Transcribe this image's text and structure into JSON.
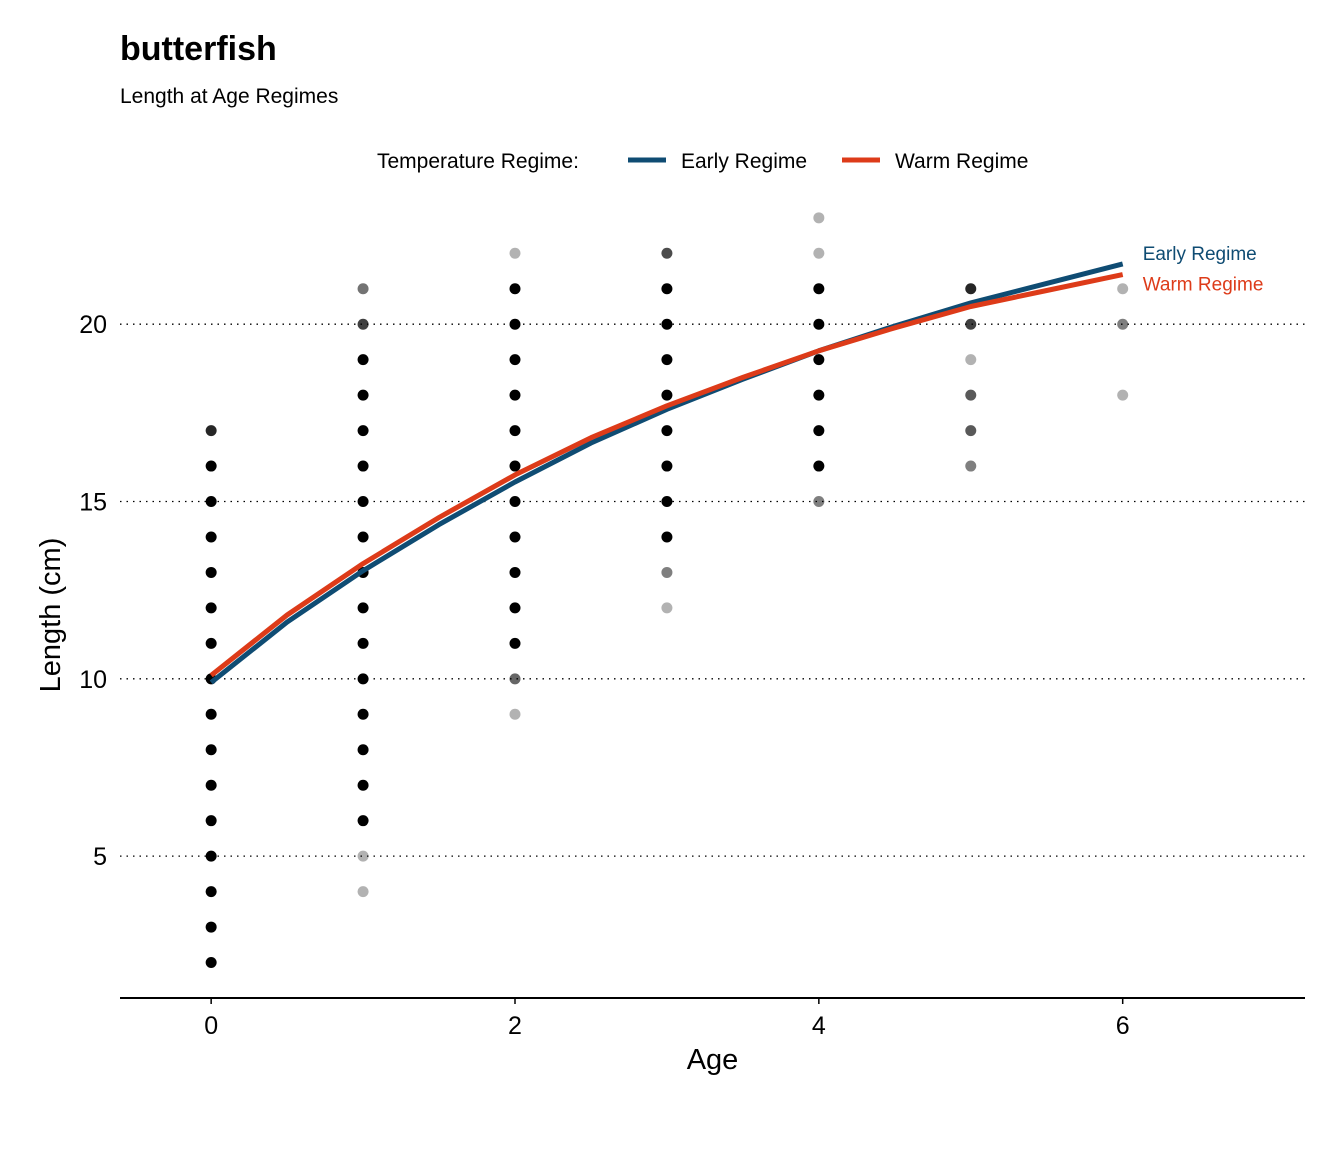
{
  "chart_data": {
    "type": "scatter",
    "title": "butterfish",
    "subtitle": "Length at Age Regimes",
    "xlabel": "Age",
    "ylabel": "Length (cm)",
    "xlim": [
      -0.6,
      7.2
    ],
    "ylim": [
      1,
      22.6
    ],
    "xticks": [
      0,
      2,
      4,
      6
    ],
    "yticks": [
      5,
      10,
      15,
      20
    ],
    "grid": "horizontal-dotted",
    "legend": {
      "title": "Temperature Regime:",
      "placement": "top",
      "entries": [
        {
          "label": "Early Regime",
          "color": "#0f4c73"
        },
        {
          "label": "Warm Regime",
          "color": "#dd3b19"
        }
      ]
    },
    "points": [
      {
        "age": 0,
        "length": 2,
        "alpha": 1
      },
      {
        "age": 0,
        "length": 3,
        "alpha": 1
      },
      {
        "age": 0,
        "length": 4,
        "alpha": 1
      },
      {
        "age": 0,
        "length": 5,
        "alpha": 1
      },
      {
        "age": 0,
        "length": 6,
        "alpha": 1
      },
      {
        "age": 0,
        "length": 7,
        "alpha": 1
      },
      {
        "age": 0,
        "length": 8,
        "alpha": 1
      },
      {
        "age": 0,
        "length": 9,
        "alpha": 1
      },
      {
        "age": 0,
        "length": 10,
        "alpha": 1
      },
      {
        "age": 0,
        "length": 11,
        "alpha": 1
      },
      {
        "age": 0,
        "length": 12,
        "alpha": 1
      },
      {
        "age": 0,
        "length": 13,
        "alpha": 1
      },
      {
        "age": 0,
        "length": 14,
        "alpha": 1
      },
      {
        "age": 0,
        "length": 15,
        "alpha": 1
      },
      {
        "age": 0,
        "length": 16,
        "alpha": 1
      },
      {
        "age": 0,
        "length": 17,
        "alpha": 0.85
      },
      {
        "age": 1,
        "length": 4,
        "alpha": 0.3
      },
      {
        "age": 1,
        "length": 5,
        "alpha": 0.3
      },
      {
        "age": 1,
        "length": 6,
        "alpha": 1
      },
      {
        "age": 1,
        "length": 7,
        "alpha": 1
      },
      {
        "age": 1,
        "length": 8,
        "alpha": 1
      },
      {
        "age": 1,
        "length": 9,
        "alpha": 1
      },
      {
        "age": 1,
        "length": 10,
        "alpha": 1
      },
      {
        "age": 1,
        "length": 11,
        "alpha": 1
      },
      {
        "age": 1,
        "length": 12,
        "alpha": 1
      },
      {
        "age": 1,
        "length": 13,
        "alpha": 1
      },
      {
        "age": 1,
        "length": 14,
        "alpha": 1
      },
      {
        "age": 1,
        "length": 15,
        "alpha": 1
      },
      {
        "age": 1,
        "length": 16,
        "alpha": 1
      },
      {
        "age": 1,
        "length": 17,
        "alpha": 1
      },
      {
        "age": 1,
        "length": 18,
        "alpha": 1
      },
      {
        "age": 1,
        "length": 19,
        "alpha": 1
      },
      {
        "age": 1,
        "length": 20,
        "alpha": 0.75
      },
      {
        "age": 1,
        "length": 21,
        "alpha": 0.55
      },
      {
        "age": 2,
        "length": 9,
        "alpha": 0.3
      },
      {
        "age": 2,
        "length": 10,
        "alpha": 0.6
      },
      {
        "age": 2,
        "length": 11,
        "alpha": 1
      },
      {
        "age": 2,
        "length": 12,
        "alpha": 1
      },
      {
        "age": 2,
        "length": 13,
        "alpha": 1
      },
      {
        "age": 2,
        "length": 14,
        "alpha": 1
      },
      {
        "age": 2,
        "length": 15,
        "alpha": 1
      },
      {
        "age": 2,
        "length": 16,
        "alpha": 1
      },
      {
        "age": 2,
        "length": 17,
        "alpha": 1
      },
      {
        "age": 2,
        "length": 18,
        "alpha": 1
      },
      {
        "age": 2,
        "length": 19,
        "alpha": 1
      },
      {
        "age": 2,
        "length": 20,
        "alpha": 1
      },
      {
        "age": 2,
        "length": 21,
        "alpha": 1
      },
      {
        "age": 2,
        "length": 22,
        "alpha": 0.3
      },
      {
        "age": 3,
        "length": 12,
        "alpha": 0.3
      },
      {
        "age": 3,
        "length": 13,
        "alpha": 0.5
      },
      {
        "age": 3,
        "length": 14,
        "alpha": 1
      },
      {
        "age": 3,
        "length": 15,
        "alpha": 1
      },
      {
        "age": 3,
        "length": 16,
        "alpha": 1
      },
      {
        "age": 3,
        "length": 17,
        "alpha": 1
      },
      {
        "age": 3,
        "length": 18,
        "alpha": 1
      },
      {
        "age": 3,
        "length": 19,
        "alpha": 1
      },
      {
        "age": 3,
        "length": 20,
        "alpha": 1
      },
      {
        "age": 3,
        "length": 21,
        "alpha": 1
      },
      {
        "age": 3,
        "length": 22,
        "alpha": 0.7
      },
      {
        "age": 4,
        "length": 15,
        "alpha": 0.5
      },
      {
        "age": 4,
        "length": 16,
        "alpha": 1
      },
      {
        "age": 4,
        "length": 17,
        "alpha": 1
      },
      {
        "age": 4,
        "length": 18,
        "alpha": 1
      },
      {
        "age": 4,
        "length": 19,
        "alpha": 1
      },
      {
        "age": 4,
        "length": 20,
        "alpha": 1
      },
      {
        "age": 4,
        "length": 21,
        "alpha": 1
      },
      {
        "age": 4,
        "length": 22,
        "alpha": 0.3
      },
      {
        "age": 4,
        "length": 23,
        "alpha": 0.3
      },
      {
        "age": 5,
        "length": 16,
        "alpha": 0.5
      },
      {
        "age": 5,
        "length": 17,
        "alpha": 0.65
      },
      {
        "age": 5,
        "length": 18,
        "alpha": 0.65
      },
      {
        "age": 5,
        "length": 19,
        "alpha": 0.3
      },
      {
        "age": 5,
        "length": 20,
        "alpha": 0.75
      },
      {
        "age": 5,
        "length": 21,
        "alpha": 0.85
      },
      {
        "age": 6,
        "length": 18,
        "alpha": 0.3
      },
      {
        "age": 6,
        "length": 20,
        "alpha": 0.5
      },
      {
        "age": 6,
        "length": 21,
        "alpha": 0.3
      }
    ],
    "series": [
      {
        "name": "Early Regime",
        "color": "#0f4c73",
        "x": [
          0,
          0.5,
          1,
          1.5,
          2,
          2.5,
          3,
          3.5,
          4,
          4.5,
          5,
          5.5,
          6
        ],
        "y": [
          9.9,
          11.6,
          13.05,
          14.35,
          15.55,
          16.65,
          17.6,
          18.45,
          19.25,
          19.95,
          20.6,
          21.15,
          21.7
        ]
      },
      {
        "name": "Warm Regime",
        "color": "#dd3b19",
        "x": [
          0,
          0.5,
          1,
          1.5,
          2,
          2.5,
          3,
          3.5,
          4,
          4.5,
          5,
          5.5,
          6
        ],
        "y": [
          10.1,
          11.8,
          13.25,
          14.55,
          15.75,
          16.8,
          17.7,
          18.5,
          19.25,
          19.9,
          20.5,
          20.95,
          21.4
        ]
      }
    ]
  }
}
